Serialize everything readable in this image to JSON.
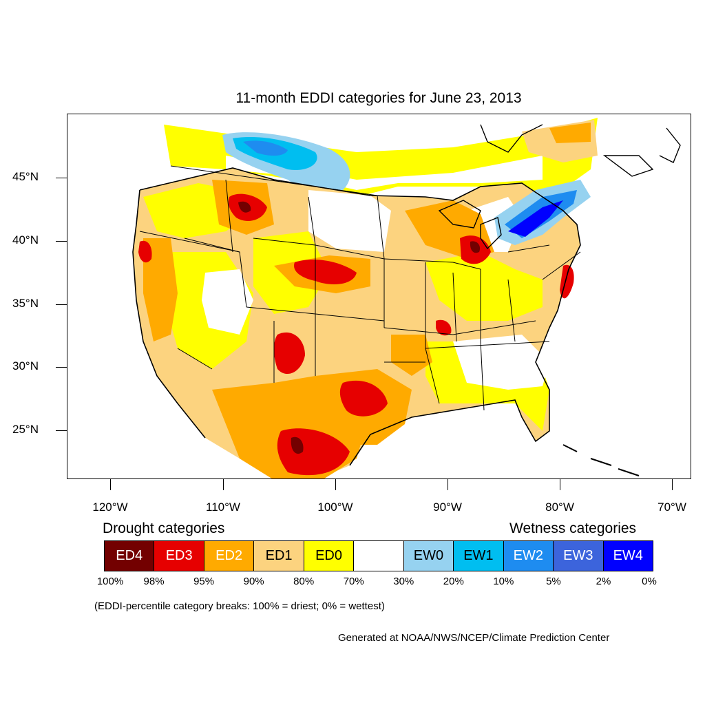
{
  "title": "11-month EDDI categories for June 23, 2013",
  "lat_labels": [
    "45°N",
    "40°N",
    "35°N",
    "30°N",
    "25°N"
  ],
  "lon_labels": [
    "120°W",
    "110°W",
    "100°W",
    "90°W",
    "80°W",
    "70°W"
  ],
  "drought_heading": "Drought categories",
  "wetness_heading": "Wetness categories",
  "legend": [
    {
      "label": "ED4",
      "color": "#730000",
      "text_color": "#ffffff"
    },
    {
      "label": "ED3",
      "color": "#e60000",
      "text_color": "#ffffff"
    },
    {
      "label": "ED2",
      "color": "#ffaa00",
      "text_color": "#ffffff"
    },
    {
      "label": "ED1",
      "color": "#fcd37f",
      "text_color": "#000000"
    },
    {
      "label": "ED0",
      "color": "#ffff00",
      "text_color": "#000000"
    },
    {
      "label": "",
      "color": "#ffffff",
      "text_color": "#000000"
    },
    {
      "label": "EW0",
      "color": "#96d2f0",
      "text_color": "#000000"
    },
    {
      "label": "EW1",
      "color": "#00bef0",
      "text_color": "#000000"
    },
    {
      "label": "EW2",
      "color": "#1e8cf0",
      "text_color": "#ffffff"
    },
    {
      "label": "EW3",
      "color": "#3c64dc",
      "text_color": "#ffffff"
    },
    {
      "label": "EW4",
      "color": "#0000ff",
      "text_color": "#ffffff"
    }
  ],
  "breaks": [
    "100%",
    "98%",
    "95%",
    "90%",
    "80%",
    "70%",
    "30%",
    "20%",
    "10%",
    "5%",
    "2%",
    "0%"
  ],
  "note": "(EDDI-percentile category breaks: 100% = driest; 0% = wettest)",
  "credit": "Generated at NOAA/NWS/NCEP/Climate Prediction Center"
}
